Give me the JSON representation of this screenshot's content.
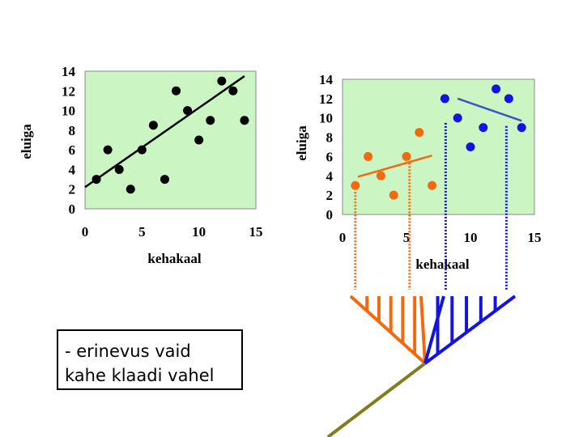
{
  "colors": {
    "plot_background": "#ccf5c4",
    "left_points": "#000000",
    "clade_a": "#f26a10",
    "clade_b": "#1414e0",
    "ancestor_branch": "#7f7d1c",
    "trend_line_left": "#000000",
    "trend_line_a": "#f26a10",
    "trend_line_b": "#3a55c8"
  },
  "chart_data": [
    {
      "type": "scatter",
      "title": "",
      "xlabel": "kehakaal",
      "ylabel": "eluiga",
      "xlim": [
        0,
        15
      ],
      "ylim": [
        0,
        14
      ],
      "x_ticks": [
        "0",
        "5",
        "10",
        "15"
      ],
      "y_ticks": [
        "0",
        "2",
        "4",
        "6",
        "8",
        "10",
        "12",
        "14"
      ],
      "grid": false,
      "legend": "none",
      "series": [
        {
          "points": [
            [
              1,
              3
            ],
            [
              2,
              6
            ],
            [
              3,
              4
            ],
            [
              4,
              2
            ],
            [
              5,
              6
            ],
            [
              6,
              8.5
            ],
            [
              7,
              3
            ],
            [
              8,
              12
            ],
            [
              9,
              10
            ],
            [
              10,
              7
            ],
            [
              11,
              9
            ],
            [
              12,
              13
            ],
            [
              13,
              12
            ],
            [
              14,
              9
            ]
          ],
          "color": "#000000"
        }
      ],
      "trend_lines": [
        {
          "from": [
            0,
            2.2
          ],
          "to": [
            14,
            13.5
          ],
          "color": "#000000"
        }
      ]
    },
    {
      "type": "scatter",
      "title": "",
      "xlabel": "kehakaal",
      "ylabel": "eluiga",
      "xlim": [
        0,
        15
      ],
      "ylim": [
        0,
        14
      ],
      "x_ticks": [
        "0",
        "5",
        "10",
        "15"
      ],
      "y_ticks": [
        "0",
        "2",
        "4",
        "6",
        "8",
        "10",
        "12",
        "14"
      ],
      "grid": false,
      "legend": "none",
      "series": [
        {
          "points": [
            [
              1,
              3
            ],
            [
              2,
              6
            ],
            [
              3,
              4
            ],
            [
              4,
              2
            ],
            [
              5,
              6
            ],
            [
              6,
              8.5
            ],
            [
              7,
              3
            ]
          ],
          "color": "#f26a10"
        },
        {
          "points": [
            [
              8,
              12
            ],
            [
              9,
              10
            ],
            [
              10,
              7
            ],
            [
              11,
              9
            ],
            [
              12,
              13
            ],
            [
              13,
              12
            ],
            [
              14,
              9
            ]
          ],
          "color": "#1414e0"
        }
      ],
      "trend_lines": [
        {
          "from": [
            1.2,
            3.9
          ],
          "to": [
            7,
            6.1
          ],
          "color": "#f26a10"
        },
        {
          "from": [
            9,
            12
          ],
          "to": [
            14,
            9.7
          ],
          "color": "#3a55c8"
        }
      ]
    }
  ],
  "note": {
    "line1": "- erinevus vaid",
    "line2": "kahe klaadi vahel"
  }
}
